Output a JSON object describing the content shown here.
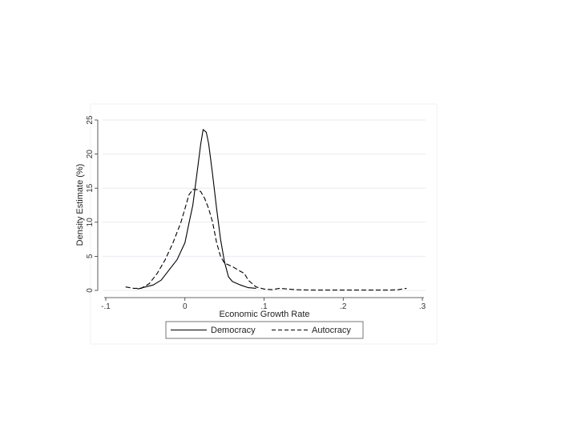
{
  "chart_data": {
    "type": "line",
    "xlabel": "Economic Growth Rate",
    "ylabel": "Density Estimate (%)",
    "xlim": [
      -0.1,
      0.3
    ],
    "ylim": [
      0,
      25
    ],
    "xticks": [
      -0.1,
      0,
      0.1,
      0.2,
      0.3
    ],
    "xtick_labels": [
      "-.1",
      "0",
      ".1",
      ".2",
      ".3"
    ],
    "yticks": [
      0,
      5,
      10,
      15,
      20,
      25
    ],
    "ytick_labels": [
      "0",
      "5",
      "10",
      "15",
      "20",
      "25"
    ],
    "grid": true,
    "legend_position": "bottom",
    "series": [
      {
        "name": "Democracy",
        "line_style": "solid",
        "x": [
          -0.06,
          -0.05,
          -0.04,
          -0.03,
          -0.02,
          -0.01,
          0.0,
          0.005,
          0.01,
          0.015,
          0.02,
          0.023,
          0.027,
          0.03,
          0.035,
          0.04,
          0.045,
          0.05,
          0.055,
          0.06,
          0.07,
          0.08,
          0.09
        ],
        "y": [
          0.2,
          0.5,
          0.8,
          1.5,
          3.0,
          4.5,
          7.0,
          9.8,
          12.5,
          17.0,
          21.5,
          23.6,
          23.2,
          21.5,
          17.0,
          12.0,
          7.5,
          4.2,
          2.0,
          1.3,
          0.8,
          0.4,
          0.3
        ]
      },
      {
        "name": "Autocracy",
        "line_style": "dashed",
        "x": [
          -0.075,
          -0.065,
          -0.055,
          -0.045,
          -0.035,
          -0.025,
          -0.015,
          -0.005,
          0.0,
          0.005,
          0.01,
          0.015,
          0.02,
          0.025,
          0.03,
          0.035,
          0.04,
          0.045,
          0.05,
          0.06,
          0.07,
          0.075,
          0.08,
          0.085,
          0.09,
          0.1,
          0.11,
          0.12,
          0.13,
          0.14,
          0.16,
          0.18,
          0.2,
          0.22,
          0.24,
          0.26,
          0.27,
          0.28
        ],
        "y": [
          0.5,
          0.3,
          0.3,
          1.0,
          2.5,
          4.5,
          7.0,
          10.0,
          12.0,
          14.0,
          14.8,
          14.8,
          14.5,
          13.5,
          12.0,
          10.0,
          7.0,
          5.0,
          4.0,
          3.5,
          2.8,
          2.5,
          1.5,
          1.0,
          0.5,
          0.2,
          0.1,
          0.3,
          0.2,
          0.1,
          0.05,
          0.05,
          0.05,
          0.05,
          0.05,
          0.05,
          0.1,
          0.3
        ]
      }
    ]
  }
}
